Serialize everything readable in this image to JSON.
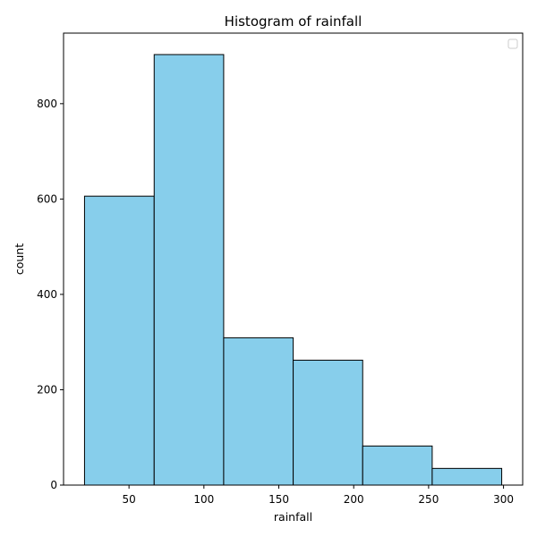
{
  "chart_data": {
    "type": "bar",
    "title": "Histogram of rainfall",
    "xlabel": "rainfall",
    "ylabel": "count",
    "bins": [
      {
        "start": 20.3,
        "end": 66.8,
        "count": 606
      },
      {
        "start": 66.8,
        "end": 113.2,
        "count": 903
      },
      {
        "start": 113.2,
        "end": 159.6,
        "count": 309
      },
      {
        "start": 159.6,
        "end": 206.0,
        "count": 262
      },
      {
        "start": 206.0,
        "end": 252.4,
        "count": 82
      },
      {
        "start": 252.4,
        "end": 298.8,
        "count": 35
      }
    ],
    "xlim": [
      6.3,
      312.8
    ],
    "ylim": [
      0,
      948
    ],
    "x_ticks": [
      50,
      100,
      150,
      200,
      250,
      300
    ],
    "y_ticks": [
      0,
      200,
      400,
      600,
      800
    ],
    "grid": false,
    "legend": "top-right (empty)",
    "colors": {
      "bar_fill": "#87CEEB",
      "bar_edge": "#000000",
      "axes": "#000000"
    }
  }
}
